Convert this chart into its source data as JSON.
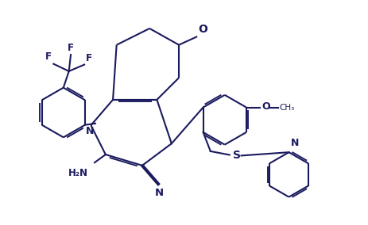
{
  "bg_color": "#ffffff",
  "bond_color": "#1a1a5e",
  "line_width": 1.5,
  "figsize": [
    4.64,
    2.84
  ],
  "dpi": 100,
  "xlim": [
    0,
    10
  ],
  "ylim": [
    0,
    6
  ]
}
